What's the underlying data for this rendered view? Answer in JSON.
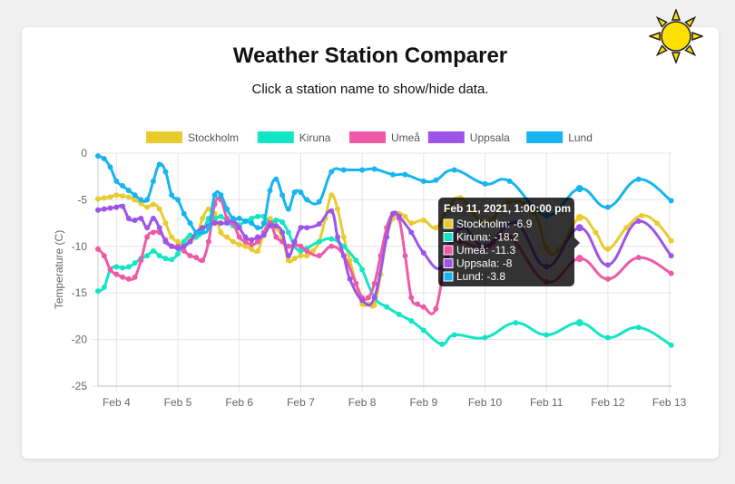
{
  "page": {
    "title": "Weather Station Comparer",
    "subtitle": "Click a station name to show/hide data."
  },
  "tooltip": {
    "title": "Feb 11, 2021, 1:00:00 pm",
    "lines": [
      "Stockholm: -6.9",
      "Kiruna: -18.2",
      "Umeå: -11.3",
      "Uppsala: -8",
      "Lund: -3.8"
    ]
  },
  "chart_data": {
    "type": "line",
    "ylabel": "Temperature (C)",
    "xlabel": "",
    "ylim": [
      -25,
      0
    ],
    "xlim": [
      3.7,
      13.05
    ],
    "yticks": [
      0,
      -5,
      -10,
      -15,
      -20,
      -25
    ],
    "xticks": [
      {
        "v": 4,
        "label": "Feb 4"
      },
      {
        "v": 5,
        "label": "Feb 5"
      },
      {
        "v": 6,
        "label": "Feb 6"
      },
      {
        "v": 7,
        "label": "Feb 7"
      },
      {
        "v": 8,
        "label": "Feb 8"
      },
      {
        "v": 9,
        "label": "Feb 9"
      },
      {
        "v": 10,
        "label": "Feb 10"
      },
      {
        "v": 11,
        "label": "Feb 11"
      },
      {
        "v": 12,
        "label": "Feb 12"
      },
      {
        "v": 13,
        "label": "Feb 13"
      }
    ],
    "legend_position": "top",
    "grid": true,
    "hover_x": 11.54,
    "series": [
      {
        "name": "Stockholm",
        "color": "#e8cc2e",
        "points": [
          [
            3.7,
            -4.9
          ],
          [
            3.8,
            -4.8
          ],
          [
            3.9,
            -4.7
          ],
          [
            4,
            -4.5
          ],
          [
            4.1,
            -4.6
          ],
          [
            4.2,
            -4.7
          ],
          [
            4.3,
            -5
          ],
          [
            4.4,
            -5.4
          ],
          [
            4.5,
            -5.8
          ],
          [
            4.6,
            -5.5
          ],
          [
            4.7,
            -6
          ],
          [
            4.8,
            -7.5
          ],
          [
            4.9,
            -9
          ],
          [
            5,
            -9.5
          ],
          [
            5.1,
            -9.8
          ],
          [
            5.2,
            -9.3
          ],
          [
            5.3,
            -9
          ],
          [
            5.4,
            -7
          ],
          [
            5.5,
            -6
          ],
          [
            5.6,
            -6.5
          ],
          [
            5.7,
            -8.5
          ],
          [
            5.8,
            -9
          ],
          [
            5.9,
            -9.5
          ],
          [
            6,
            -9.8
          ],
          [
            6.1,
            -10
          ],
          [
            6.2,
            -10.3
          ],
          [
            6.3,
            -10.5
          ],
          [
            6.4,
            -8.5
          ],
          [
            6.5,
            -7
          ],
          [
            6.6,
            -8
          ],
          [
            6.7,
            -9
          ],
          [
            6.8,
            -11.5
          ],
          [
            6.9,
            -11.3
          ],
          [
            7,
            -11
          ],
          [
            7.1,
            -11
          ],
          [
            7.2,
            -10.5
          ],
          [
            7.3,
            -9.5
          ],
          [
            7.4,
            -7
          ],
          [
            7.5,
            -4.5
          ],
          [
            7.6,
            -6
          ],
          [
            7.7,
            -9
          ],
          [
            7.8,
            -11.5
          ],
          [
            7.9,
            -14
          ],
          [
            8,
            -16.2
          ],
          [
            8.1,
            -16.2
          ],
          [
            8.2,
            -16.3
          ],
          [
            8.3,
            -13
          ],
          [
            8.4,
            -9
          ],
          [
            8.5,
            -7
          ],
          [
            8.6,
            -6.5
          ],
          [
            8.7,
            -6.8
          ],
          [
            8.8,
            -7.5
          ],
          [
            9,
            -7.2
          ],
          [
            9.2,
            -8
          ],
          [
            9.4,
            -6
          ],
          [
            9.6,
            -4.8
          ],
          [
            10,
            -7.5
          ],
          [
            10.4,
            -5.2
          ],
          [
            10.8,
            -6.4
          ],
          [
            11,
            -10.2
          ],
          [
            11.2,
            -10.4
          ],
          [
            11.54,
            -6.9
          ],
          [
            11.8,
            -8.5
          ],
          [
            12,
            -10.3
          ],
          [
            12.3,
            -8
          ],
          [
            12.55,
            -6.7
          ],
          [
            12.8,
            -7.5
          ],
          [
            13.03,
            -9.4
          ]
        ]
      },
      {
        "name": "Kiruna",
        "color": "#12e6c4",
        "points": [
          [
            3.7,
            -14.8
          ],
          [
            3.8,
            -14.4
          ],
          [
            3.9,
            -12.5
          ],
          [
            4,
            -12.2
          ],
          [
            4.1,
            -12.3
          ],
          [
            4.2,
            -12.2
          ],
          [
            4.3,
            -11.8
          ],
          [
            4.4,
            -11.3
          ],
          [
            4.5,
            -11
          ],
          [
            4.6,
            -10.5
          ],
          [
            4.7,
            -11
          ],
          [
            4.8,
            -11.3
          ],
          [
            4.9,
            -11.4
          ],
          [
            5,
            -10.8
          ],
          [
            5.1,
            -9.5
          ],
          [
            5.2,
            -8.8
          ],
          [
            5.3,
            -9
          ],
          [
            5.4,
            -8.5
          ],
          [
            5.5,
            -7
          ],
          [
            5.6,
            -7
          ],
          [
            5.7,
            -6.8
          ],
          [
            5.8,
            -7.3
          ],
          [
            5.9,
            -7.8
          ],
          [
            6,
            -7.7
          ],
          [
            6.1,
            -7.3
          ],
          [
            6.2,
            -7
          ],
          [
            6.3,
            -6.8
          ],
          [
            6.4,
            -6.8
          ],
          [
            6.5,
            -7.5
          ],
          [
            6.6,
            -7.2
          ],
          [
            6.7,
            -7.4
          ],
          [
            6.8,
            -8.5
          ],
          [
            6.9,
            -10
          ],
          [
            7,
            -10.5
          ],
          [
            7.1,
            -10.2
          ],
          [
            7.3,
            -9.5
          ],
          [
            7.5,
            -9.2
          ],
          [
            7.7,
            -10
          ],
          [
            7.9,
            -11.5
          ],
          [
            8,
            -12.5
          ],
          [
            8.2,
            -15.5
          ],
          [
            8.4,
            -16.5
          ],
          [
            8.6,
            -17.3
          ],
          [
            8.8,
            -18
          ],
          [
            9,
            -19
          ],
          [
            9.3,
            -20.5
          ],
          [
            9.5,
            -19.5
          ],
          [
            10,
            -19.8
          ],
          [
            10.5,
            -18.2
          ],
          [
            11,
            -19.5
          ],
          [
            11.54,
            -18.2
          ],
          [
            12,
            -19.8
          ],
          [
            12.5,
            -18.7
          ],
          [
            13.03,
            -20.6
          ]
        ]
      },
      {
        "name": "Umeå",
        "color": "#ee5aa7",
        "points": [
          [
            3.7,
            -10.3
          ],
          [
            3.8,
            -11
          ],
          [
            3.9,
            -12.5
          ],
          [
            4,
            -13
          ],
          [
            4.1,
            -13.3
          ],
          [
            4.2,
            -13.5
          ],
          [
            4.3,
            -13.3
          ],
          [
            4.4,
            -11.5
          ],
          [
            4.5,
            -9
          ],
          [
            4.6,
            -8.5
          ],
          [
            4.7,
            -8.5
          ],
          [
            4.8,
            -9.3
          ],
          [
            4.9,
            -10
          ],
          [
            5,
            -10
          ],
          [
            5.1,
            -10.5
          ],
          [
            5.2,
            -11
          ],
          [
            5.3,
            -11.2
          ],
          [
            5.4,
            -11.5
          ],
          [
            5.5,
            -9.5
          ],
          [
            5.6,
            -5.5
          ],
          [
            5.7,
            -5
          ],
          [
            5.8,
            -7
          ],
          [
            5.9,
            -7.5
          ],
          [
            6,
            -9
          ],
          [
            6.1,
            -9.5
          ],
          [
            6.2,
            -9.8
          ],
          [
            6.3,
            -9.5
          ],
          [
            6.4,
            -8.5
          ],
          [
            6.5,
            -7.5
          ],
          [
            6.6,
            -9
          ],
          [
            6.7,
            -9.5
          ],
          [
            6.8,
            -10
          ],
          [
            6.9,
            -9.8
          ],
          [
            7,
            -10
          ],
          [
            7.1,
            -10.5
          ],
          [
            7.3,
            -11
          ],
          [
            7.5,
            -10
          ],
          [
            7.7,
            -11
          ],
          [
            7.9,
            -14
          ],
          [
            8,
            -15.5
          ],
          [
            8.1,
            -15.5
          ],
          [
            8.2,
            -14
          ],
          [
            8.3,
            -11
          ],
          [
            8.4,
            -8
          ],
          [
            8.5,
            -6.5
          ],
          [
            8.6,
            -7
          ],
          [
            8.7,
            -11
          ],
          [
            8.8,
            -15.5
          ],
          [
            8.9,
            -16.2
          ],
          [
            9,
            -16.5
          ],
          [
            9.2,
            -16.7
          ],
          [
            9.4,
            -10
          ],
          [
            9.6,
            -9.5
          ],
          [
            10,
            -10.2
          ],
          [
            10.4,
            -9
          ],
          [
            11,
            -13.8
          ],
          [
            11.54,
            -11.3
          ],
          [
            12,
            -13.5
          ],
          [
            12.5,
            -11.2
          ],
          [
            13.03,
            -12.9
          ]
        ]
      },
      {
        "name": "Uppsala",
        "color": "#9c55e8",
        "points": [
          [
            3.7,
            -6.1
          ],
          [
            3.8,
            -6
          ],
          [
            3.9,
            -5.9
          ],
          [
            4,
            -5.8
          ],
          [
            4.1,
            -5.7
          ],
          [
            4.2,
            -7
          ],
          [
            4.3,
            -7.2
          ],
          [
            4.4,
            -7
          ],
          [
            4.5,
            -8
          ],
          [
            4.6,
            -7
          ],
          [
            4.7,
            -8
          ],
          [
            4.8,
            -9.5
          ],
          [
            4.9,
            -10
          ],
          [
            5,
            -10.2
          ],
          [
            5.1,
            -10
          ],
          [
            5.2,
            -9.5
          ],
          [
            5.3,
            -8.5
          ],
          [
            5.4,
            -8
          ],
          [
            5.5,
            -7.8
          ],
          [
            5.6,
            -7.5
          ],
          [
            5.7,
            -7.5
          ],
          [
            5.8,
            -7.5
          ],
          [
            5.9,
            -7.2
          ],
          [
            6,
            -8
          ],
          [
            6.1,
            -9
          ],
          [
            6.2,
            -9.3
          ],
          [
            6.3,
            -9
          ],
          [
            6.4,
            -8.8
          ],
          [
            6.5,
            -7.8
          ],
          [
            6.6,
            -7.8
          ],
          [
            6.7,
            -8.5
          ],
          [
            6.8,
            -11
          ],
          [
            6.9,
            -9.5
          ],
          [
            7,
            -8
          ],
          [
            7.1,
            -8
          ],
          [
            7.3,
            -7.6
          ],
          [
            7.5,
            -6.2
          ],
          [
            7.6,
            -9
          ],
          [
            7.7,
            -11
          ],
          [
            7.8,
            -13.5
          ],
          [
            8,
            -15.8
          ],
          [
            8.2,
            -15.5
          ],
          [
            8.4,
            -9
          ],
          [
            8.5,
            -6.5
          ],
          [
            8.6,
            -6.8
          ],
          [
            8.8,
            -8.5
          ],
          [
            9,
            -10.7
          ],
          [
            9.3,
            -12.3
          ],
          [
            9.6,
            -8
          ],
          [
            10,
            -10
          ],
          [
            10.5,
            -7.5
          ],
          [
            11,
            -12.2
          ],
          [
            11.54,
            -8
          ],
          [
            12,
            -12
          ],
          [
            12.5,
            -7.3
          ],
          [
            13.03,
            -11
          ]
        ]
      },
      {
        "name": "Lund",
        "color": "#16b4f0",
        "points": [
          [
            3.7,
            -0.3
          ],
          [
            3.8,
            -0.6
          ],
          [
            3.9,
            -1.5
          ],
          [
            4,
            -3
          ],
          [
            4.1,
            -3.5
          ],
          [
            4.2,
            -4
          ],
          [
            4.3,
            -4.5
          ],
          [
            4.4,
            -5
          ],
          [
            4.5,
            -5
          ],
          [
            4.6,
            -3
          ],
          [
            4.7,
            -1.2
          ],
          [
            4.8,
            -2
          ],
          [
            4.9,
            -4.5
          ],
          [
            5,
            -5
          ],
          [
            5.1,
            -6.5
          ],
          [
            5.2,
            -7.5
          ],
          [
            5.3,
            -8.5
          ],
          [
            5.4,
            -8.5
          ],
          [
            5.5,
            -8
          ],
          [
            5.6,
            -4.5
          ],
          [
            5.7,
            -4.5
          ],
          [
            5.8,
            -6
          ],
          [
            5.9,
            -7
          ],
          [
            6,
            -7
          ],
          [
            6.1,
            -7.3
          ],
          [
            6.2,
            -7.5
          ],
          [
            6.3,
            -8
          ],
          [
            6.4,
            -7.5
          ],
          [
            6.5,
            -4
          ],
          [
            6.6,
            -2.8
          ],
          [
            6.7,
            -4.5
          ],
          [
            6.8,
            -6
          ],
          [
            6.9,
            -4.2
          ],
          [
            7,
            -4.2
          ],
          [
            7.1,
            -5
          ],
          [
            7.3,
            -5.2
          ],
          [
            7.5,
            -2
          ],
          [
            7.7,
            -1.8
          ],
          [
            8,
            -1.8
          ],
          [
            8.2,
            -1.7
          ],
          [
            8.5,
            -2.3
          ],
          [
            8.7,
            -2.3
          ],
          [
            9,
            -3
          ],
          [
            9.2,
            -2.9
          ],
          [
            9.5,
            -1.8
          ],
          [
            10,
            -3.3
          ],
          [
            10.4,
            -3
          ],
          [
            11,
            -6.7
          ],
          [
            11.54,
            -3.8
          ],
          [
            12,
            -5.8
          ],
          [
            12.5,
            -2.8
          ],
          [
            13.03,
            -5.1
          ]
        ]
      }
    ]
  }
}
